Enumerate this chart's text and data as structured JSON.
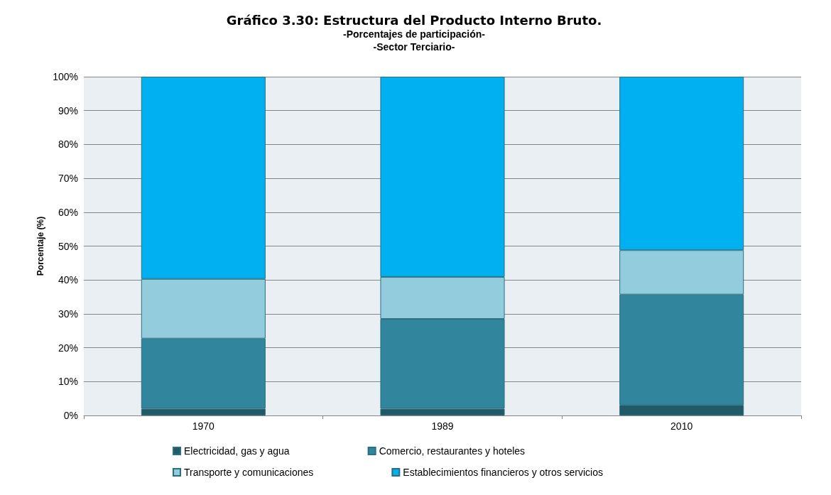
{
  "chart_data": {
    "type": "bar",
    "stacked": true,
    "title": "Gráfico 3.30: Estructura del Producto Interno Bruto.",
    "subtitle": "-Porcentajes de participación-\n-Sector Terciario-",
    "ylabel": "Porcentaje (%)",
    "categories": [
      "1970",
      "1989",
      "2010"
    ],
    "series": [
      {
        "name": "Electricidad, gas y agua",
        "color": "#215968",
        "values": [
          2,
          2,
          3.1
        ]
      },
      {
        "name": "Comercio, restaurantes y hoteles",
        "color": "#31859c",
        "values": [
          20.7,
          26.5,
          32.6
        ]
      },
      {
        "name": "Transporte y comunicaciones",
        "color": "#93cddd",
        "values": [
          17.6,
          12.4,
          13.1
        ]
      },
      {
        "name": "Establecimientos financieros y otros servicios",
        "color": "#00b0f0",
        "values": [
          59.7,
          59.1,
          51.2
        ]
      }
    ],
    "ylim": [
      0,
      100
    ],
    "yticks": [
      {
        "value": 0,
        "label": "0%"
      },
      {
        "value": 10,
        "label": "10%"
      },
      {
        "value": 20,
        "label": "20%"
      },
      {
        "value": 30,
        "label": "30%"
      },
      {
        "value": 40,
        "label": "40%"
      },
      {
        "value": 50,
        "label": "50%"
      },
      {
        "value": 60,
        "label": "60%"
      },
      {
        "value": 70,
        "label": "70%"
      },
      {
        "value": 80,
        "label": "80%"
      },
      {
        "value": 90,
        "label": "90%"
      },
      {
        "value": 100,
        "label": "100%"
      }
    ],
    "grid": "y",
    "legend": "bottom"
  }
}
